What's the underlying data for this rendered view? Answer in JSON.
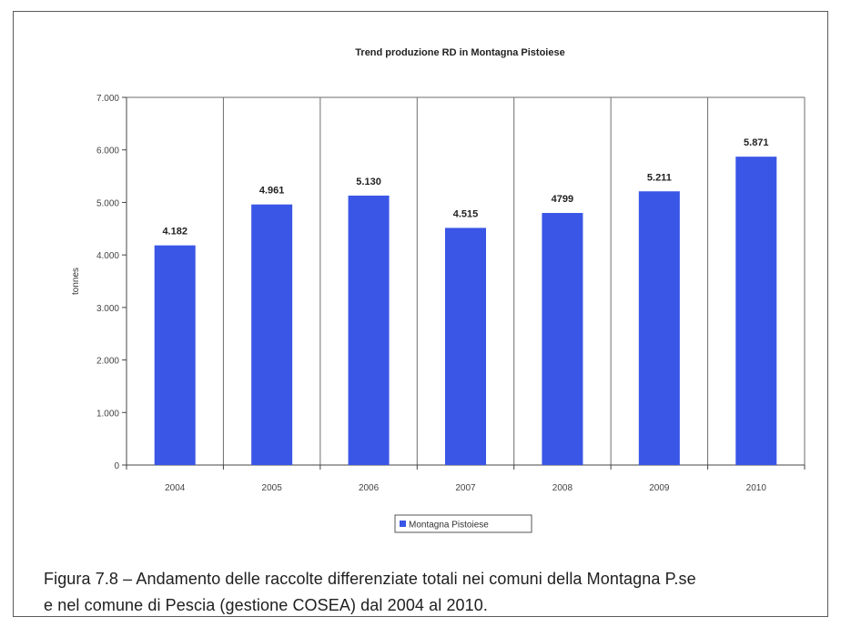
{
  "chart_data": {
    "type": "bar",
    "title": "Trend produzione RD in Montagna Pistoiese",
    "xlabel": "",
    "ylabel": "tonnes",
    "categories": [
      "2004",
      "2005",
      "2006",
      "2007",
      "2008",
      "2009",
      "2010"
    ],
    "series": [
      {
        "name": "Montagna Pistoiese",
        "values": [
          4182,
          4961,
          5130,
          4515,
          4799,
          5211,
          5871
        ],
        "labels": [
          "4.182",
          "4.961",
          "5.130",
          "4.515",
          "4799",
          "5.211",
          "5.871"
        ]
      }
    ],
    "ylim": [
      0,
      7000
    ],
    "yticks": [
      0,
      1000,
      2000,
      3000,
      4000,
      5000,
      6000,
      7000
    ],
    "ytick_labels": [
      "0",
      "1.000",
      "2.000",
      "3.000",
      "4.000",
      "5.000",
      "6.000",
      "7.000"
    ],
    "grid": "vertical",
    "legend_position": "bottom-center",
    "colors": {
      "bar": "#3a56e6",
      "grid": "#6e6e6e",
      "frame": "#5a5a5a"
    }
  },
  "caption": {
    "line1": "Figura 7.8 – Andamento delle raccolte differenziate totali nei comuni della Montagna P.se",
    "line2": "e nel comune di Pescia (gestione COSEA) dal 2004 al 2010."
  }
}
